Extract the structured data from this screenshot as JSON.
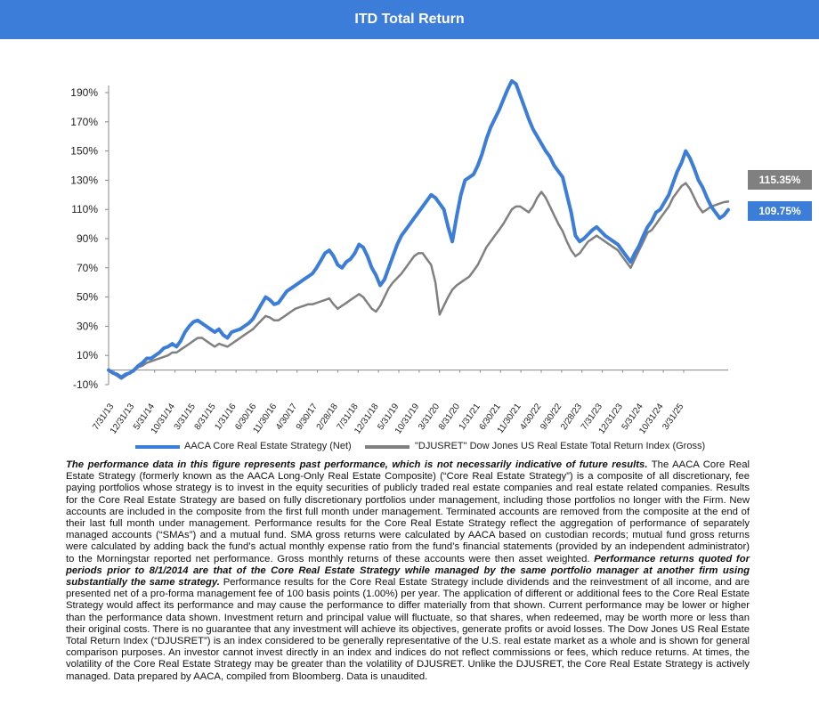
{
  "header": {
    "title": "ITD Total Return"
  },
  "colors": {
    "header_bg": "#3b7dd8",
    "strategy": "#3b7dd8",
    "index": "#808080"
  },
  "badges": {
    "index_value": "115.35%",
    "strategy_value": "109.75%"
  },
  "legend": {
    "strategy": "AACA Core Real Estate Strategy (Net)",
    "index": "\"DJUSRET\" Dow Jones US Real Estate Total Return Index (Gross)"
  },
  "disclaimer": {
    "lead": "The performance data in this figure represents past performance, which is not necessarily indicative of future results.",
    "body1": " The AACA Core Real Estate Strategy (formerly known as the AACA Long-Only Real Estate Composite) (“Core Real Estate Strategy”) is a composite of all discretionary, fee paying portfolios whose strategy is to invest in the equity securities of publicly traded real estate companies and real estate related companies. Results for the Core Real Estate Strategy are based on fully discretionary portfolios under management, including those portfolios no longer with the Firm. New accounts are included in the composite from the first full month under management. Terminated accounts are removed from the composite at the end of their last full month under management. Performance results for the Core Real Estate Strategy reflect the aggregation of performance of separately managed accounts (“SMAs”) and a mutual fund. SMA gross returns were calculated by AACA based on custodian records; mutual fund gross returns were calculated by adding back the fund’s actual monthly expense ratio from the fund’s financial statements (provided by an independent administrator) to the Morningstar reported net performance. Gross monthly returns of these accounts were then asset weighted. ",
    "emphasis": "Performance returns quoted for periods prior to 8/1/2014 are that of the Core Real Estate Strategy while managed by the same portfolio manager at another firm using substantially the same strategy.",
    "body2": " Performance results for the Core Real Estate Strategy include dividends and the reinvestment of all income, and are presented net of a pro-forma management fee of 100 basis points (1.00%) per year. The application of different or additional fees to the Core Real Estate Strategy would affect its performance and may cause the performance to differ materially from that shown. Current performance may be lower or higher than the performance data shown. Investment return and principal value will fluctuate, so that shares, when redeemed, may be worth more or less than their original costs. There is no guarantee that any investment will achieve its objectives, generate profits or avoid losses. The Dow Jones US Real Estate Total Return Index (“DJUSRET”) is an index considered to be generally representative of the U.S. real estate market as a whole and is shown for general comparison purposes. An investor cannot invest directly in an index and indices do not reflect commissions or fees, which reduce returns. At times, the volatility of the Core Real Estate Strategy may be greater than the volatility of DJUSRET. Unlike the DJUSRET, the Core Real Estate Strategy is actively managed. Data prepared by AACA, compiled from Bloomberg. Data is unaudited."
  },
  "chart_data": {
    "type": "line",
    "title": "ITD Total Return",
    "xlabel": "",
    "ylabel": "",
    "ylim": [
      -10,
      200
    ],
    "yticks": [
      -10,
      10,
      30,
      50,
      70,
      90,
      110,
      130,
      150,
      170,
      190
    ],
    "ytick_format": "percent",
    "grid": false,
    "legend_position": "bottom",
    "x_tick_labels": [
      "7/31/13",
      "12/31/13",
      "5/31/14",
      "10/31/14",
      "3/31/15",
      "8/31/15",
      "1/31/16",
      "6/30/16",
      "11/30/16",
      "4/30/17",
      "9/30/17",
      "2/28/18",
      "7/31/18",
      "12/31/18",
      "5/31/19",
      "10/31/19",
      "3/31/20",
      "8/31/20",
      "1/31/21",
      "6/30/21",
      "11/30/21",
      "4/30/22",
      "9/30/22",
      "2/28/23",
      "7/31/23",
      "12/31/23",
      "5/31/24",
      "10/31/24",
      "3/31/25"
    ],
    "series": [
      {
        "name": "AACA Core Real Estate Strategy (Net)",
        "color": "#3b7dd8",
        "end_label": "109.75%",
        "values": [
          0,
          -2,
          -3,
          -5,
          -3,
          -2,
          0,
          3,
          5,
          8,
          8,
          10,
          12,
          15,
          16,
          18,
          16,
          20,
          26,
          30,
          33,
          34,
          32,
          30,
          28,
          26,
          28,
          24,
          22,
          26,
          27,
          28,
          30,
          32,
          35,
          40,
          45,
          50,
          48,
          45,
          46,
          50,
          54,
          56,
          58,
          60,
          62,
          64,
          66,
          70,
          75,
          80,
          82,
          78,
          72,
          70,
          74,
          76,
          80,
          86,
          84,
          78,
          70,
          65,
          58,
          62,
          70,
          78,
          86,
          92,
          96,
          100,
          104,
          108,
          112,
          116,
          120,
          118,
          114,
          110,
          98,
          88,
          105,
          120,
          130,
          132,
          134,
          140,
          148,
          158,
          166,
          172,
          178,
          185,
          192,
          198,
          196,
          188,
          180,
          172,
          165,
          160,
          155,
          150,
          146,
          140,
          136,
          132,
          120,
          108,
          92,
          88,
          90,
          93,
          96,
          98,
          95,
          92,
          90,
          88,
          86,
          82,
          78,
          74,
          80,
          85,
          92,
          98,
          102,
          108,
          110,
          115,
          120,
          128,
          136,
          142,
          150,
          145,
          138,
          130,
          125,
          118,
          112,
          108,
          104,
          106,
          109.75
        ]
      },
      {
        "name": "\"DJUSRET\" Dow Jones US Real Estate Total Return Index (Gross)",
        "color": "#808080",
        "end_label": "115.35%",
        "values": [
          0,
          -2,
          -4,
          -6,
          -4,
          -2,
          0,
          2,
          3,
          5,
          6,
          7,
          8,
          9,
          10,
          12,
          12,
          14,
          16,
          18,
          20,
          22,
          22,
          20,
          18,
          16,
          18,
          17,
          16,
          18,
          20,
          22,
          24,
          26,
          28,
          31,
          34,
          37,
          36,
          34,
          34,
          36,
          38,
          40,
          42,
          43,
          44,
          45,
          45,
          46,
          47,
          48,
          49,
          45,
          42,
          44,
          46,
          48,
          50,
          52,
          50,
          46,
          42,
          40,
          44,
          50,
          56,
          60,
          63,
          66,
          70,
          74,
          78,
          80,
          80,
          76,
          72,
          60,
          38,
          44,
          50,
          55,
          58,
          60,
          62,
          64,
          68,
          72,
          78,
          84,
          88,
          92,
          96,
          100,
          105,
          110,
          112,
          112,
          110,
          108,
          112,
          118,
          122,
          118,
          112,
          106,
          100,
          95,
          88,
          82,
          78,
          80,
          84,
          88,
          90,
          92,
          90,
          88,
          86,
          84,
          82,
          78,
          74,
          70,
          76,
          82,
          88,
          94,
          96,
          100,
          104,
          108,
          112,
          118,
          122,
          126,
          128,
          124,
          118,
          112,
          108,
          110,
          112,
          113,
          114,
          115,
          115.35
        ]
      }
    ]
  }
}
